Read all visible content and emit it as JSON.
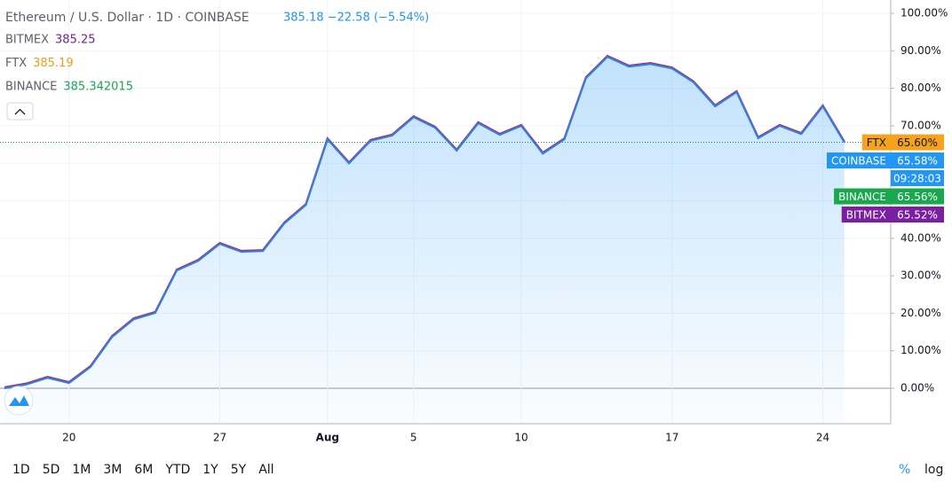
{
  "header": {
    "title": "Ethereum / U.S. Dollar · 1D · COINBASE",
    "quote": "385.18 −22.58 (−5.54%)"
  },
  "compare": [
    {
      "name": "BITMEX",
      "price": "385.25",
      "color": "#7b1fa2"
    },
    {
      "name": "FTX",
      "price": "385.19",
      "color": "#f39c12"
    },
    {
      "name": "BINANCE",
      "price": "385.342015",
      "color": "#1aa84e"
    }
  ],
  "chart_data": {
    "type": "area",
    "categories": [
      null,
      null,
      null,
      "20",
      null,
      null,
      null,
      null,
      null,
      null,
      "27",
      null,
      null,
      null,
      null,
      "Aug",
      null,
      null,
      null,
      "5",
      null,
      null,
      null,
      null,
      "10",
      null,
      null,
      null,
      null,
      null,
      null,
      "17",
      null,
      null,
      null,
      null,
      null,
      null,
      "24",
      null
    ],
    "series": [
      {
        "name": "COINBASE",
        "color": "#2f80e0",
        "values": [
          0,
          1,
          2.8,
          1.4,
          5.7,
          13.7,
          18.4,
          20.1,
          31.4,
          34.0,
          38.5,
          36.4,
          36.6,
          44.0,
          48.9,
          66.4,
          60.0,
          66.0,
          67.4,
          72.3,
          69.5,
          63.4,
          70.7,
          67.6,
          70.0,
          62.6,
          66.4,
          82.7,
          88.4,
          85.8,
          86.5,
          85.3,
          81.6,
          75.2,
          79.0,
          66.7,
          70.0,
          67.8,
          75.2,
          65.6
        ]
      }
    ],
    "ylim": [
      -9.46,
      103.55
    ],
    "yticks": [
      {
        "value": 0,
        "label": "0.00%"
      },
      {
        "value": 10,
        "label": "10.00%"
      },
      {
        "value": 20,
        "label": "20.00%"
      },
      {
        "value": 30,
        "label": "30.00%"
      },
      {
        "value": 40,
        "label": "40.00%"
      },
      {
        "value": 50,
        "label": "50.00%"
      },
      {
        "value": 60,
        "label": "60.00%"
      },
      {
        "value": 70,
        "label": "70.00%"
      },
      {
        "value": 80,
        "label": "80.00%"
      },
      {
        "value": 90,
        "label": "90.00%"
      },
      {
        "value": 100,
        "label": "100.00%"
      }
    ],
    "grid": true,
    "log_scale": false,
    "price_tags": [
      {
        "name": "FTX",
        "value": 65.6,
        "label": "65.60%",
        "color": "#f7a21b",
        "text_color": "#131722"
      },
      {
        "name": "COINBASE",
        "value": 65.58,
        "label": "65.58%",
        "color": "#2196f3",
        "text_color": "#ffffff",
        "countdown": "09:28:03"
      },
      {
        "name": "BINANCE",
        "value": 65.56,
        "label": "65.56%",
        "color": "#1aa84e",
        "text_color": "#ffffff"
      },
      {
        "name": "BITMEX",
        "value": 65.52,
        "label": "65.52%",
        "color": "#7b1fa2",
        "text_color": "#ffffff"
      }
    ]
  },
  "toolbar": {
    "ranges": [
      "1D",
      "5D",
      "1M",
      "3M",
      "6M",
      "YTD",
      "1Y",
      "5Y",
      "All"
    ],
    "scale_modes": [
      "%",
      "log"
    ]
  }
}
